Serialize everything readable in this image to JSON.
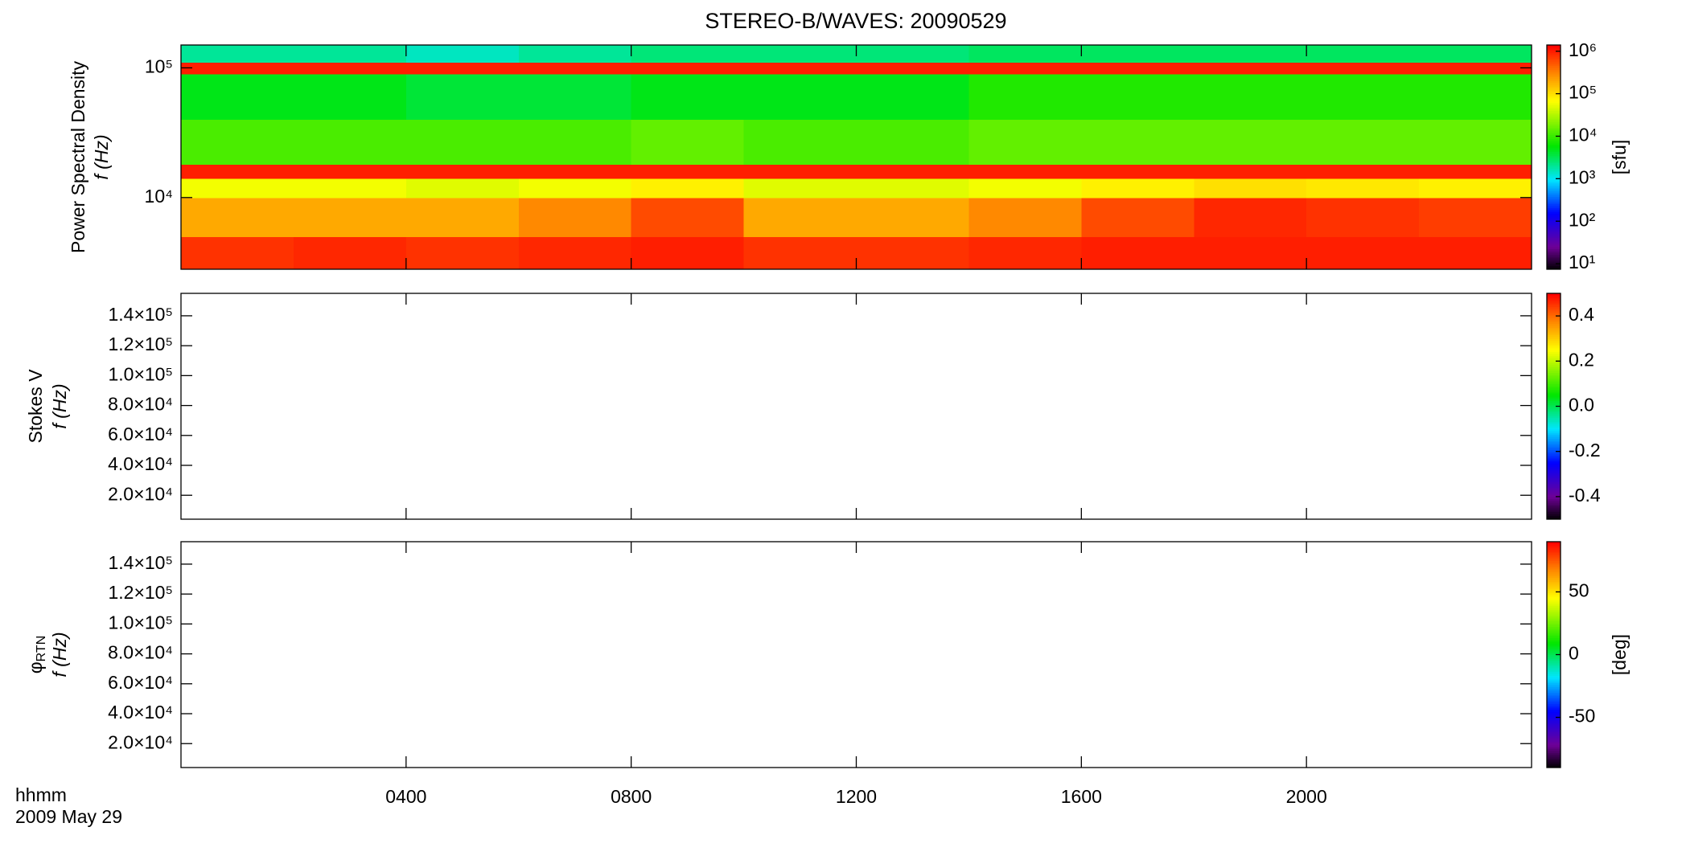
{
  "chart_data": [
    {
      "type": "heatmap",
      "title": "STEREO-B/WAVES: 20090529",
      "ylabel": "Power Spectral Density",
      "ylabel2": "f (Hz)",
      "log_y": true,
      "ylim": [
        2800,
        150000
      ],
      "yticks": [
        {
          "value": 10000,
          "label": "10⁴"
        },
        {
          "value": 100000,
          "label": "10⁵"
        }
      ],
      "x_edges": [
        0,
        2,
        4,
        6,
        8,
        10,
        12,
        14,
        16,
        18,
        20,
        22,
        24
      ],
      "y_edges": [
        2800,
        5000,
        10000,
        14000,
        18000,
        40000,
        90000,
        110000,
        150000
      ],
      "z": [
        [
          800000,
          900000,
          800000,
          900000,
          1000000,
          800000,
          800000,
          900000,
          1000000,
          1000000,
          1000000,
          1000000
        ],
        [
          200000,
          200000,
          200000,
          300000,
          600000,
          200000,
          200000,
          300000,
          600000,
          900000,
          800000,
          700000
        ],
        [
          60000,
          60000,
          50000,
          60000,
          80000,
          50000,
          50000,
          60000,
          80000,
          100000,
          90000,
          80000
        ],
        [
          1000000,
          1000000,
          1000000,
          1000000,
          1000000,
          1000000,
          1000000,
          1000000,
          1000000,
          1000000,
          1000000,
          1000000
        ],
        [
          12000,
          12000,
          12000,
          12000,
          15000,
          12000,
          12000,
          15000,
          15000,
          15000,
          15000,
          15000
        ],
        [
          5000,
          5000,
          4000,
          4000,
          5000,
          5000,
          5000,
          8000,
          8000,
          8000,
          8000,
          8000
        ],
        [
          1000000,
          1000000,
          1000000,
          1000000,
          1000000,
          1000000,
          1000000,
          1000000,
          1000000,
          1000000,
          1000000,
          1000000
        ],
        [
          2000,
          2000,
          1500,
          2000,
          2500,
          2500,
          2500,
          3000,
          3000,
          3000,
          3000,
          3000
        ]
      ],
      "colormap": "rainbow",
      "clog": true,
      "clim": [
        7.4,
        1400000
      ],
      "cticks": [
        {
          "value": 10,
          "label": "10¹"
        },
        {
          "value": 100,
          "label": "10²"
        },
        {
          "value": 1000,
          "label": "10³"
        },
        {
          "value": 10000,
          "label": "10⁴"
        },
        {
          "value": 100000,
          "label": "10⁵"
        },
        {
          "value": 1000000,
          "label": "10⁶"
        }
      ],
      "clabel": "[sfu]"
    },
    {
      "type": "heatmap",
      "ylabel": "Stokes V",
      "ylabel2": "f (Hz)",
      "log_y": false,
      "ylim": [
        4000,
        155000
      ],
      "yticks": [
        {
          "value": 20000,
          "label": "2.0×10⁴"
        },
        {
          "value": 40000,
          "label": "4.0×10⁴"
        },
        {
          "value": 60000,
          "label": "6.0×10⁴"
        },
        {
          "value": 80000,
          "label": "8.0×10⁴"
        },
        {
          "value": 100000,
          "label": "1.0×10⁵"
        },
        {
          "value": 120000,
          "label": "1.2×10⁵"
        },
        {
          "value": 140000,
          "label": "1.4×10⁵"
        }
      ],
      "colormap": "rainbow",
      "clog": false,
      "clim": [
        -0.5,
        0.5
      ],
      "cticks": [
        -0.4,
        -0.2,
        {
          "value": 0,
          "label": "0.0"
        },
        0.2,
        0.4
      ]
    },
    {
      "type": "heatmap",
      "ylabel": "φ",
      "ylabel_sub": "RTN",
      "ylabel2": "f (Hz)",
      "log_y": false,
      "ylim": [
        4000,
        155000
      ],
      "yticks": [
        {
          "value": 20000,
          "label": "2.0×10⁴"
        },
        {
          "value": 40000,
          "label": "4.0×10⁴"
        },
        {
          "value": 60000,
          "label": "6.0×10⁴"
        },
        {
          "value": 80000,
          "label": "8.0×10⁴"
        },
        {
          "value": 100000,
          "label": "1.0×10⁵"
        },
        {
          "value": 120000,
          "label": "1.2×10⁵"
        },
        {
          "value": 140000,
          "label": "1.4×10⁵"
        }
      ],
      "colormap": "rainbow",
      "clog": false,
      "clim": [
        -90,
        90
      ],
      "cticks": [
        -50,
        0,
        50
      ],
      "clabel": "[deg]",
      "xlim": [
        0,
        24
      ],
      "xticks": [
        {
          "value": 4,
          "label": "0400"
        },
        {
          "value": 8,
          "label": "0800"
        },
        {
          "value": 12,
          "label": "1200"
        },
        {
          "value": 16,
          "label": "1600"
        },
        {
          "value": 20,
          "label": "2000"
        }
      ],
      "xlabel": "hhmm",
      "xlabel2": "2009 May 29"
    }
  ]
}
